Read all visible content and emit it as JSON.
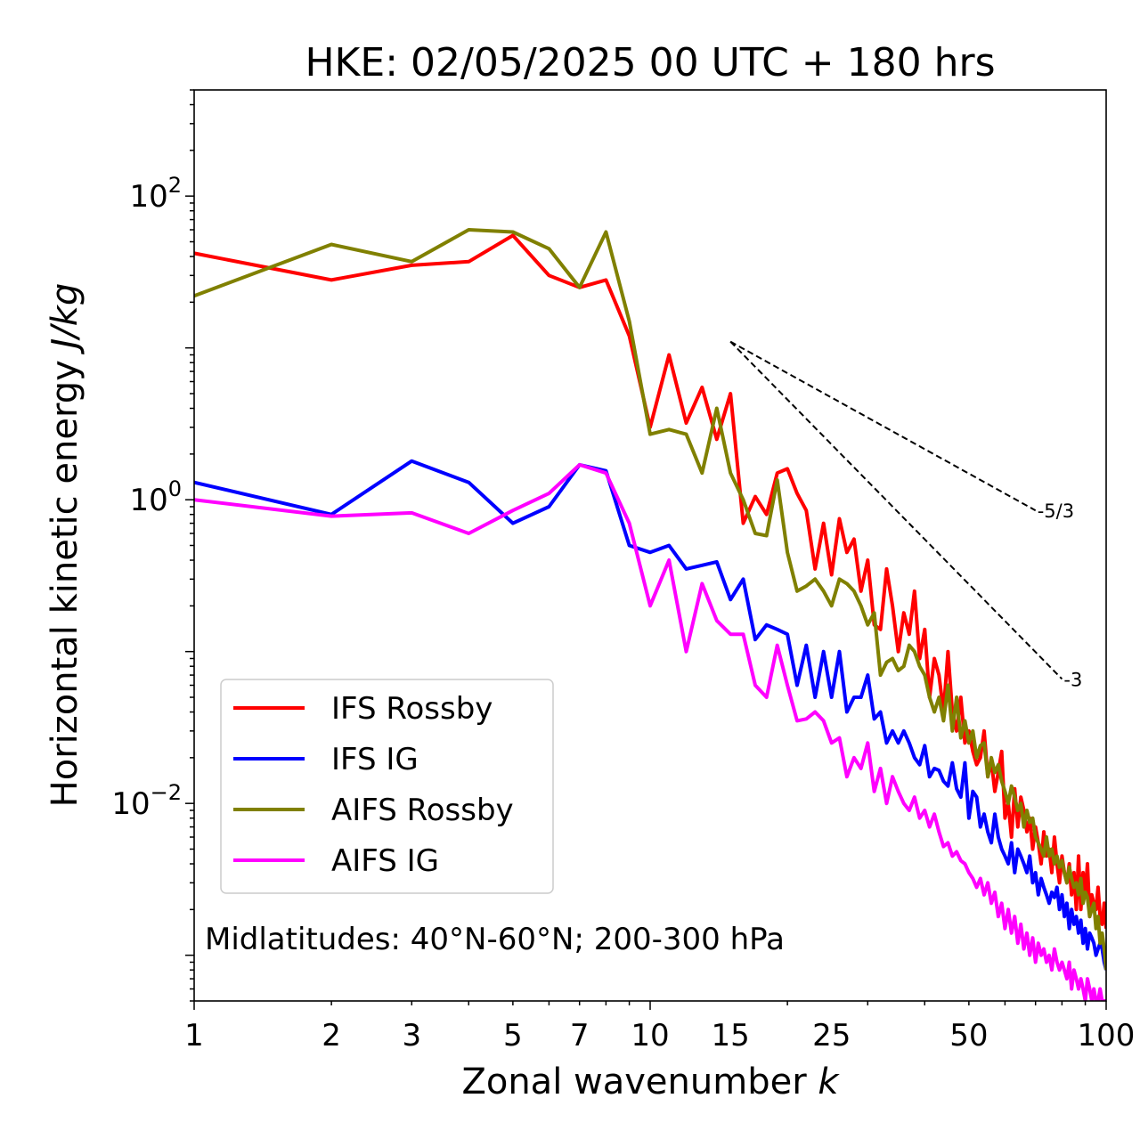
{
  "chart_data": {
    "type": "line",
    "title": "HKE: 02/05/2025 00 UTC + 180 hrs",
    "xlabel_prefix": "Zonal wavenumber ",
    "xlabel_var": "k",
    "ylabel_prefix": "Horizontal kinetic energy ",
    "ylabel_unit": "J/kg",
    "xscale": "log",
    "yscale": "log",
    "xlim": [
      1,
      100
    ],
    "ylim": [
      0.0005,
      500
    ],
    "xticks": [
      1,
      2,
      3,
      5,
      7,
      10,
      15,
      25,
      50,
      100
    ],
    "xtick_labels": [
      "1",
      "2",
      "3",
      "5",
      "7",
      "10",
      "15",
      "25",
      "50",
      "100"
    ],
    "yticks": [
      {
        "value": 100,
        "base": "10",
        "exp": "2"
      },
      {
        "value": 1,
        "base": "10",
        "exp": "0"
      },
      {
        "value": 0.01,
        "base": "10",
        "exp": "−2"
      }
    ],
    "annotation": "Midlatitudes: 40°N-60°N; 200-300 hPa",
    "legend_position": "lower-left",
    "reference_lines": [
      {
        "label": "-5/3",
        "x": [
          15,
          70
        ],
        "y": [
          11.0,
          0.85
        ]
      },
      {
        "label": "-3",
        "x": [
          15,
          80
        ],
        "y": [
          11.0,
          0.066
        ]
      }
    ],
    "x": [
      1,
      2,
      3,
      4,
      5,
      6,
      7,
      8,
      9,
      10,
      11,
      12,
      13,
      14,
      15,
      16,
      17,
      18,
      19,
      20,
      21,
      22,
      23,
      24,
      25,
      26,
      27,
      28,
      29,
      30,
      31,
      32,
      33,
      34,
      35,
      36,
      37,
      38,
      39,
      40,
      41,
      42,
      43,
      44,
      45,
      46,
      47,
      48,
      49,
      50,
      51,
      52,
      53,
      54,
      55,
      56,
      57,
      58,
      59,
      60,
      61,
      62,
      63,
      64,
      65,
      66,
      67,
      68,
      69,
      70,
      71,
      72,
      73,
      74,
      75,
      76,
      77,
      78,
      79,
      80,
      81,
      82,
      83,
      84,
      85,
      86,
      87,
      88,
      89,
      90,
      91,
      92,
      93,
      94,
      95,
      96,
      97,
      98,
      99,
      100
    ],
    "series": [
      {
        "name": "IFS Rossby",
        "color": "#ff0000",
        "values": [
          42,
          28,
          35,
          37,
          55,
          30,
          25,
          28,
          12,
          3.0,
          9.0,
          3.2,
          5.5,
          2.5,
          5.0,
          0.7,
          1.05,
          0.8,
          1.5,
          1.6,
          1.1,
          0.85,
          0.35,
          0.7,
          0.32,
          0.75,
          0.45,
          0.55,
          0.25,
          0.4,
          0.15,
          0.14,
          0.35,
          0.2,
          0.1,
          0.18,
          0.13,
          0.25,
          0.09,
          0.14,
          0.05,
          0.09,
          0.07,
          0.04,
          0.1,
          0.04,
          0.03,
          0.05,
          0.025,
          0.03,
          0.022,
          0.018,
          0.02,
          0.03,
          0.015,
          0.019,
          0.012,
          0.016,
          0.022,
          0.008,
          0.01,
          0.006,
          0.0125,
          0.007,
          0.011,
          0.009,
          0.0065,
          0.008,
          0.005,
          0.007,
          0.0055,
          0.004,
          0.0065,
          0.0045,
          0.005,
          0.0035,
          0.006,
          0.004,
          0.003,
          0.0045,
          0.0035,
          0.003,
          0.004,
          0.0025,
          0.0035,
          0.002,
          0.0045,
          0.002,
          0.0035,
          0.0025,
          0.004,
          0.0018,
          0.0025,
          0.0022,
          0.002,
          0.0028,
          0.0018,
          0.0016,
          0.0022,
          0.0015
        ]
      },
      {
        "name": "IFS IG",
        "color": "#0000ff",
        "values": [
          1.3,
          0.8,
          1.8,
          1.3,
          0.7,
          0.9,
          1.7,
          1.55,
          0.5,
          0.45,
          0.5,
          0.35,
          0.37,
          0.39,
          0.22,
          0.3,
          0.12,
          0.15,
          0.14,
          0.13,
          0.06,
          0.11,
          0.05,
          0.1,
          0.05,
          0.1,
          0.04,
          0.05,
          0.05,
          0.07,
          0.036,
          0.04,
          0.025,
          0.03,
          0.025,
          0.03,
          0.025,
          0.02,
          0.018,
          0.024,
          0.015,
          0.017,
          0.0165,
          0.014,
          0.013,
          0.0185,
          0.0125,
          0.011,
          0.0185,
          0.008,
          0.012,
          0.011,
          0.007,
          0.0085,
          0.0065,
          0.0055,
          0.0085,
          0.006,
          0.005,
          0.0045,
          0.004,
          0.0055,
          0.0035,
          0.005,
          0.0045,
          0.004,
          0.0035,
          0.0045,
          0.003,
          0.0035,
          0.0025,
          0.0032,
          0.0028,
          0.0025,
          0.0022,
          0.0026,
          0.0024,
          0.0028,
          0.002,
          0.0025,
          0.0018,
          0.0022,
          0.0015,
          0.002,
          0.0016,
          0.0018,
          0.0014,
          0.0017,
          0.0012,
          0.0015,
          0.0011,
          0.0014,
          0.0013,
          0.0012,
          0.001,
          0.0011,
          0.0012,
          0.0011,
          0.0009,
          0.0008
        ]
      },
      {
        "name": "AIFS Rossby",
        "color": "#808000",
        "values": [
          22,
          48,
          37,
          60,
          58,
          45,
          25,
          58,
          15,
          2.7,
          2.9,
          2.7,
          1.5,
          4.0,
          1.5,
          1.0,
          0.6,
          0.58,
          1.35,
          0.45,
          0.25,
          0.27,
          0.3,
          0.25,
          0.2,
          0.3,
          0.28,
          0.25,
          0.2,
          0.15,
          0.18,
          0.07,
          0.085,
          0.09,
          0.075,
          0.08,
          0.11,
          0.1,
          0.08,
          0.07,
          0.05,
          0.04,
          0.05,
          0.035,
          0.06,
          0.03,
          0.05,
          0.027,
          0.035,
          0.025,
          0.03,
          0.02,
          0.024,
          0.025,
          0.015,
          0.02,
          0.016,
          0.018,
          0.014,
          0.012,
          0.01,
          0.013,
          0.011,
          0.009,
          0.01,
          0.007,
          0.009,
          0.0075,
          0.008,
          0.006,
          0.0055,
          0.005,
          0.0045,
          0.006,
          0.0045,
          0.005,
          0.004,
          0.0045,
          0.0038,
          0.0042,
          0.0035,
          0.003,
          0.0038,
          0.0032,
          0.0028,
          0.003,
          0.0025,
          0.0032,
          0.0022,
          0.0026,
          0.0024,
          0.0018,
          0.002,
          0.0022,
          0.0015,
          0.0018,
          0.0012,
          0.0014,
          0.0011,
          0.0008
        ]
      },
      {
        "name": "AIFS IG",
        "color": "#ff00ff",
        "values": [
          1.0,
          0.78,
          0.82,
          0.6,
          0.85,
          1.1,
          1.7,
          1.5,
          0.7,
          0.2,
          0.4,
          0.1,
          0.28,
          0.16,
          0.13,
          0.13,
          0.06,
          0.05,
          0.11,
          0.06,
          0.035,
          0.036,
          0.04,
          0.035,
          0.025,
          0.027,
          0.015,
          0.02,
          0.017,
          0.025,
          0.012,
          0.017,
          0.01,
          0.015,
          0.012,
          0.01,
          0.009,
          0.011,
          0.008,
          0.009,
          0.007,
          0.0085,
          0.0065,
          0.0052,
          0.0055,
          0.0045,
          0.0048,
          0.0042,
          0.004,
          0.0035,
          0.0032,
          0.0028,
          0.0032,
          0.0025,
          0.003,
          0.0022,
          0.0026,
          0.0018,
          0.0022,
          0.0015,
          0.002,
          0.0014,
          0.0018,
          0.0012,
          0.0016,
          0.0011,
          0.0014,
          0.001,
          0.0013,
          0.0009,
          0.0012,
          0.001,
          0.0011,
          0.0009,
          0.001,
          0.0008,
          0.0011,
          0.0009,
          0.0008,
          0.0009,
          0.0008,
          0.0007,
          0.0009,
          0.0006,
          0.0008,
          0.0007,
          0.0006,
          0.0007,
          0.0006,
          0.0005,
          0.0007,
          0.0006,
          0.0005,
          0.0006,
          0.0005,
          0.0005,
          0.0006,
          0.0005,
          0.0005,
          0.0005
        ]
      }
    ]
  }
}
